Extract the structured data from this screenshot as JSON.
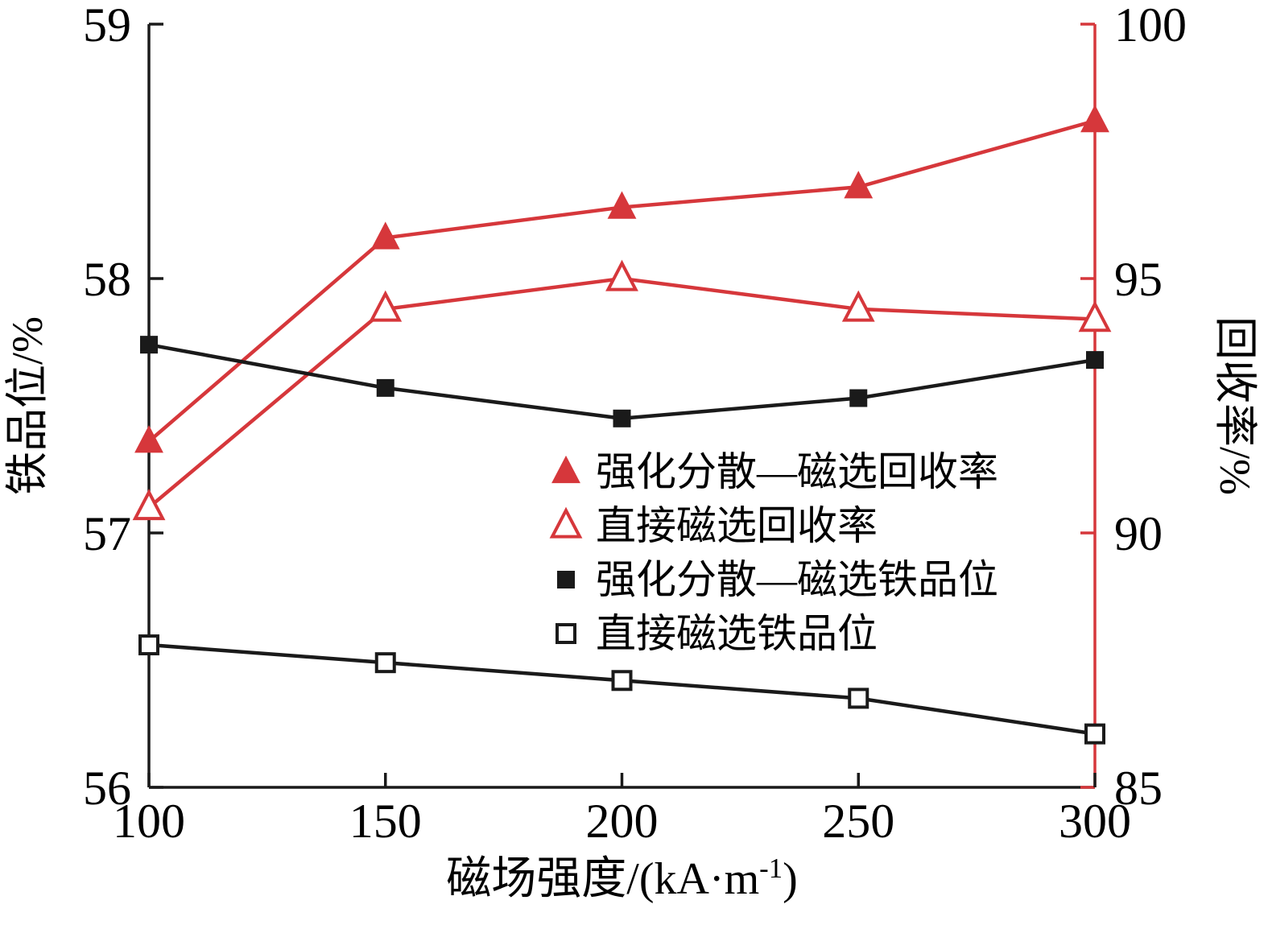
{
  "chart_data": {
    "type": "line",
    "title": "",
    "x": [
      100,
      150,
      200,
      250,
      300
    ],
    "xlim": [
      100,
      300
    ],
    "x_ticks": [
      "100",
      "150",
      "200",
      "250",
      "300"
    ],
    "xlabel": "磁场强度/(kA·m⁻¹)",
    "xlabel_parts": {
      "pre": "磁场强度/(kA·m",
      "sup": "-1",
      "post": ")"
    },
    "left_axis": {
      "label": "铁品位/%",
      "lim": [
        56,
        59
      ],
      "ticks": [
        56,
        57,
        58,
        59
      ],
      "tick_labels": [
        "56",
        "57",
        "58",
        "59"
      ],
      "color": "#1a1a1a"
    },
    "right_axis": {
      "label": "回收率/%",
      "lim": [
        85,
        100
      ],
      "ticks": [
        85,
        90,
        95,
        100
      ],
      "tick_labels": [
        "85",
        "90",
        "95",
        "100"
      ],
      "color": "#d6373b"
    },
    "grid": false,
    "legend_position": "center",
    "series": [
      {
        "name": "强化分散—磁选回收率",
        "axis": "right",
        "marker": "triangle-filled",
        "color": "#d6373b",
        "values": [
          91.8,
          95.8,
          96.4,
          96.8,
          98.1
        ]
      },
      {
        "name": "直接磁选回收率",
        "axis": "right",
        "marker": "triangle-open",
        "color": "#d6373b",
        "values": [
          90.5,
          94.4,
          95.0,
          94.4,
          94.2
        ]
      },
      {
        "name": "强化分散—磁选铁品位",
        "axis": "left",
        "marker": "square-filled",
        "color": "#1a1a1a",
        "values": [
          57.74,
          57.57,
          57.45,
          57.53,
          57.68
        ]
      },
      {
        "name": "直接磁选铁品位",
        "axis": "left",
        "marker": "square-open",
        "color": "#1a1a1a",
        "values": [
          56.56,
          56.49,
          56.42,
          56.35,
          56.21
        ]
      }
    ]
  }
}
